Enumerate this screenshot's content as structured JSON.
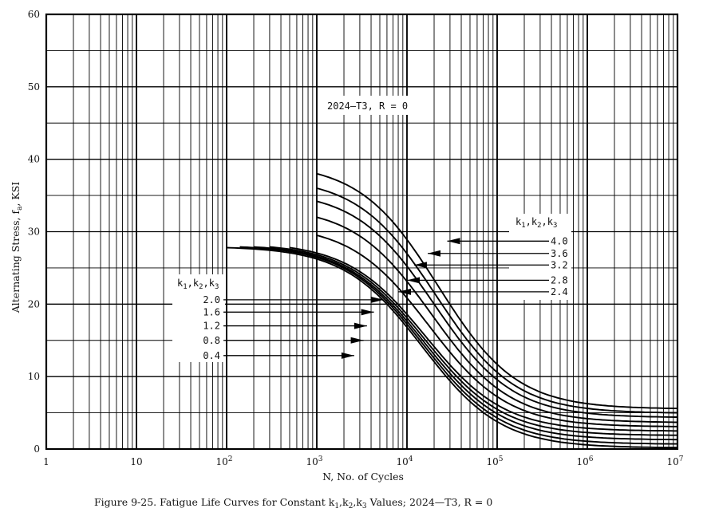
{
  "chart_data": {
    "type": "line",
    "x_scale": "log",
    "xlim": [
      1,
      10000000
    ],
    "ylim": [
      0,
      60
    ],
    "xlabel": "N, No. of Cycles",
    "ylabel": "Alternating Stress, fa, KSI",
    "ylabel_main": "Alternating Stress, f",
    "ylabel_sub": "a",
    "ylabel_tail": ", KSI",
    "y_ticks": [
      0,
      10,
      20,
      30,
      40,
      50,
      60
    ],
    "x_tick_labels": [
      {
        "exp": 0,
        "base": "1",
        "sup": ""
      },
      {
        "exp": 1,
        "base": "10",
        "sup": ""
      },
      {
        "exp": 2,
        "base": "10",
        "sup": "2"
      },
      {
        "exp": 3,
        "base": "10",
        "sup": "3"
      },
      {
        "exp": 4,
        "base": "10",
        "sup": "4"
      },
      {
        "exp": 5,
        "base": "10",
        "sup": "5"
      },
      {
        "exp": 6,
        "base": "10",
        "sup": "6"
      },
      {
        "exp": 7,
        "base": "10",
        "sup": "7"
      }
    ],
    "annotation": "2024—T3, R = 0",
    "legend_right_title": {
      "k": "k",
      "s1": "1",
      "s2": "2",
      "s3": "3",
      "sep": ","
    },
    "legend_left_title": {
      "k": "k",
      "s1": "1",
      "s2": "2",
      "s3": "3",
      "sep": ","
    },
    "caption": {
      "pre": "Figure 9-25.  Fatigue Life Curves for Constant k",
      "s1": "1",
      "s2": "2",
      "s3": "3",
      "post": " Values; 2024—T3,  R = 0",
      "comma": ","
    },
    "series": [
      {
        "name": "4.0",
        "start_n": 1000,
        "start_y": 38.0,
        "end_y": 5.6,
        "label_side": "right",
        "arrow_n": 28000,
        "arrow_y": 28.7
      },
      {
        "name": "3.6",
        "start_n": 1000,
        "start_y": 36.0,
        "end_y": 5.0,
        "label_side": "right",
        "arrow_n": 17000,
        "arrow_y": 27.0
      },
      {
        "name": "3.2",
        "start_n": 1000,
        "start_y": 34.2,
        "end_y": 4.4,
        "label_side": "right",
        "arrow_n": 12000,
        "arrow_y": 25.4
      },
      {
        "name": "2.8",
        "start_n": 1000,
        "start_y": 32.0,
        "end_y": 3.7,
        "label_side": "right",
        "arrow_n": 10000,
        "arrow_y": 23.3
      },
      {
        "name": "2.4",
        "start_n": 1000,
        "start_y": 29.5,
        "end_y": 3.1,
        "label_side": "right",
        "arrow_n": 8000,
        "arrow_y": 21.7
      },
      {
        "name": "2.0",
        "start_n": 500,
        "start_y": 27.8,
        "end_y": 2.5,
        "label_side": "left",
        "arrow_n": 5500,
        "arrow_y": 20.6
      },
      {
        "name": "1.6",
        "start_n": 300,
        "start_y": 27.9,
        "end_y": 1.9,
        "label_side": "left",
        "arrow_n": 4300,
        "arrow_y": 18.9
      },
      {
        "name": "1.2",
        "start_n": 200,
        "start_y": 27.9,
        "end_y": 1.3,
        "label_side": "left",
        "arrow_n": 3600,
        "arrow_y": 17.0
      },
      {
        "name": "0.8",
        "start_n": 140,
        "start_y": 27.9,
        "end_y": 0.7,
        "label_side": "left",
        "arrow_n": 3300,
        "arrow_y": 15.0
      },
      {
        "name": "0.4",
        "start_n": 100,
        "start_y": 27.8,
        "end_y": 0.2,
        "label_side": "left",
        "arrow_n": 2600,
        "arrow_y": 12.9
      }
    ],
    "grid": true
  }
}
